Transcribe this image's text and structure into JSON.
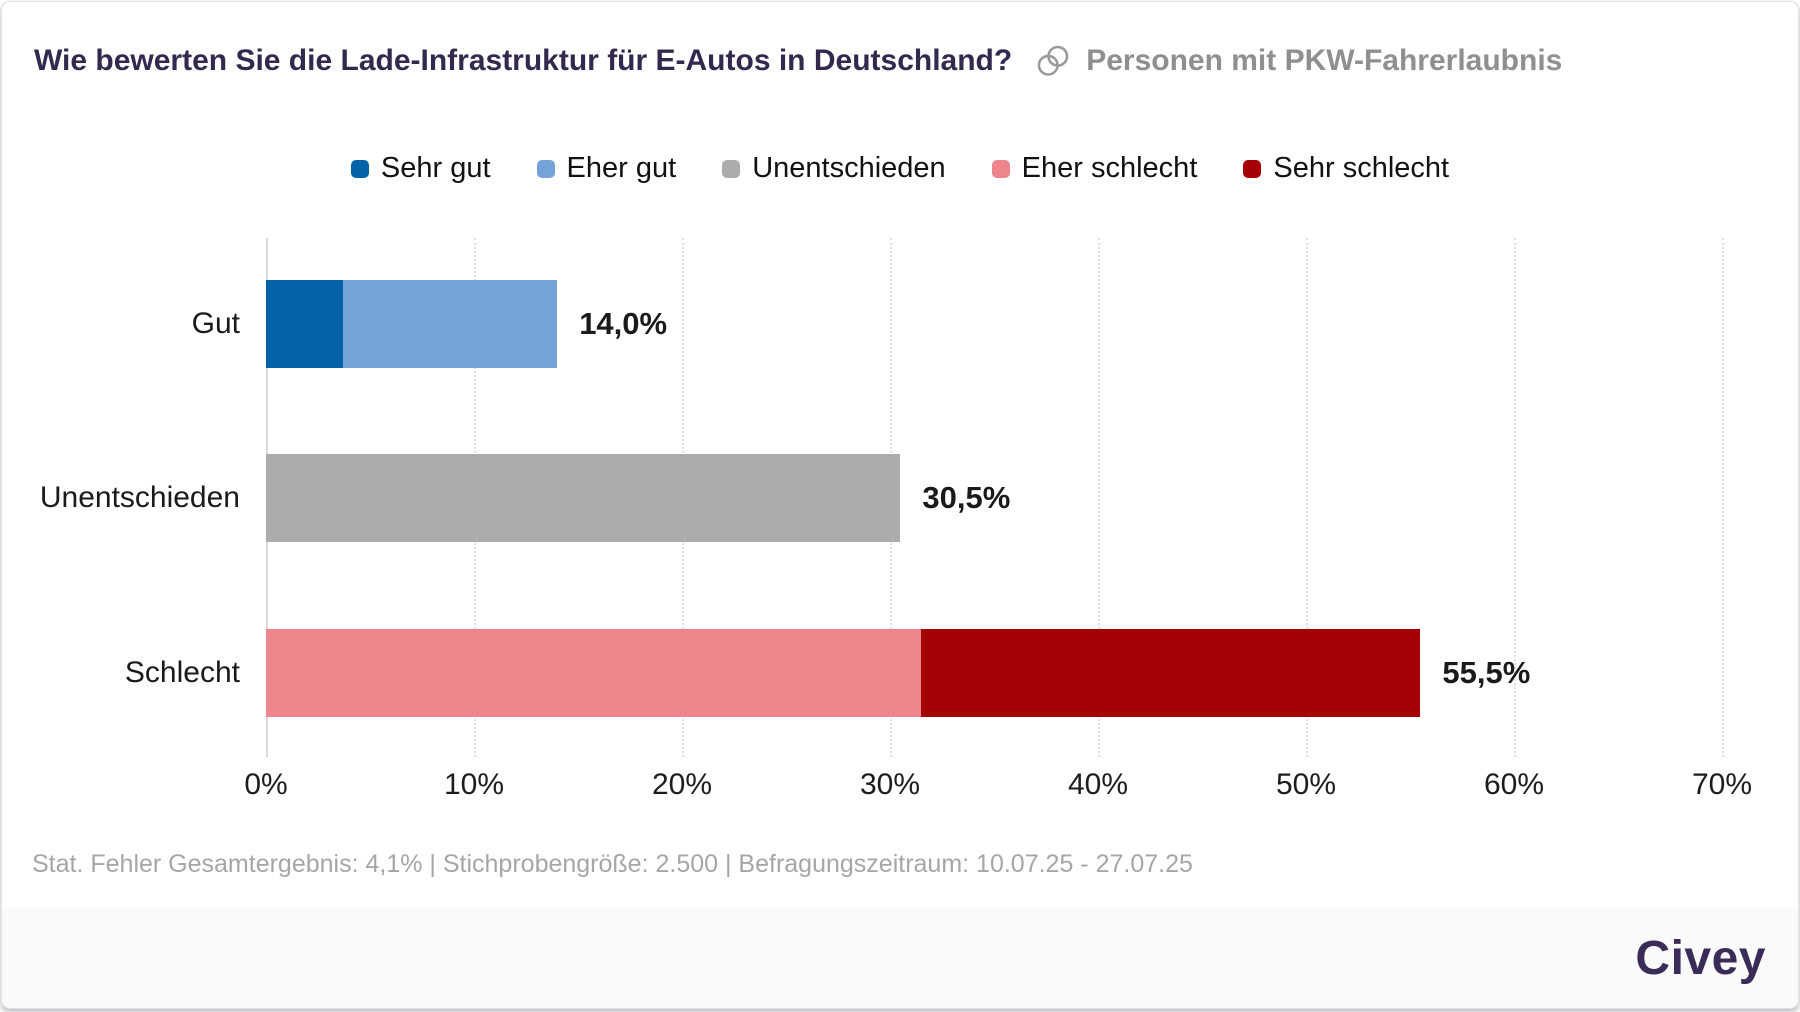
{
  "header": {
    "title": "Wie bewerten Sie die Lade-Infrastruktur für E-Autos in Deutschland?",
    "audience": "Personen mit PKW-Fahrerlaubnis",
    "audience_icon": "overlapping-circles-icon"
  },
  "legend": [
    {
      "label": "Sehr gut",
      "color": "#0563aa"
    },
    {
      "label": "Eher gut",
      "color": "#75a3d9"
    },
    {
      "label": "Unentschieden",
      "color": "#acacac"
    },
    {
      "label": "Eher schlecht",
      "color": "#ef858c"
    },
    {
      "label": "Sehr schlecht",
      "color": "#a50205"
    }
  ],
  "chart_data": {
    "type": "bar",
    "orientation": "horizontal",
    "stacked": true,
    "title": "Wie bewerten Sie die Lade-Infrastruktur für E-Autos in Deutschland?",
    "xlabel": "",
    "ylabel": "",
    "xlim": [
      0,
      70
    ],
    "x_ticks": [
      "0%",
      "10%",
      "20%",
      "30%",
      "40%",
      "50%",
      "60%",
      "70%"
    ],
    "grid": "vertical-dotted",
    "legend_position": "top-center",
    "categories": [
      "Gut",
      "Unentschieden",
      "Schlecht"
    ],
    "rows": [
      {
        "label": "Gut",
        "total": 14.0,
        "total_label": "14,0%",
        "segments": [
          {
            "name": "Sehr gut",
            "value": 3.7,
            "color": "#0563aa"
          },
          {
            "name": "Eher gut",
            "value": 10.3,
            "color": "#75a3d9"
          }
        ]
      },
      {
        "label": "Unentschieden",
        "total": 30.5,
        "total_label": "30,5%",
        "segments": [
          {
            "name": "Unentschieden",
            "value": 30.5,
            "color": "#acacac"
          }
        ]
      },
      {
        "label": "Schlecht",
        "total": 55.5,
        "total_label": "55,5%",
        "segments": [
          {
            "name": "Eher schlecht",
            "value": 31.5,
            "color": "#ef858c"
          },
          {
            "name": "Sehr schlecht",
            "value": 24.0,
            "color": "#a50205"
          }
        ]
      }
    ]
  },
  "footer": {
    "note": "Stat. Fehler Gesamtergebnis: 4,1% | Stichprobengröße: 2.500 | Befragungszeitraum: 10.07.25 - 27.07.25",
    "brand": "Civey"
  }
}
